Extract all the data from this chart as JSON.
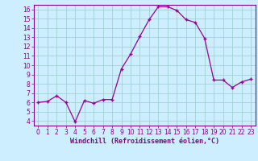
{
  "x": [
    0,
    1,
    2,
    3,
    4,
    5,
    6,
    7,
    8,
    9,
    10,
    11,
    12,
    13,
    14,
    15,
    16,
    17,
    18,
    19,
    20,
    21,
    22,
    23
  ],
  "y": [
    6.0,
    6.1,
    6.7,
    6.0,
    3.9,
    6.2,
    5.9,
    6.3,
    6.3,
    9.6,
    11.2,
    13.1,
    14.9,
    16.3,
    16.3,
    15.9,
    14.9,
    14.6,
    12.9,
    8.4,
    8.4,
    7.6,
    8.2,
    8.5
  ],
  "line_color": "#990099",
  "marker": "+",
  "marker_size": 3,
  "marker_lw": 1.0,
  "line_width": 0.9,
  "bg_color": "#cceeff",
  "grid_color": "#99cccc",
  "xlabel": "Windchill (Refroidissement éolien,°C)",
  "xlabel_fontsize": 6.0,
  "xlim": [
    -0.5,
    23.5
  ],
  "ylim": [
    3.5,
    16.5
  ],
  "yticks": [
    4,
    5,
    6,
    7,
    8,
    9,
    10,
    11,
    12,
    13,
    14,
    15,
    16
  ],
  "xticks": [
    0,
    1,
    2,
    3,
    4,
    5,
    6,
    7,
    8,
    9,
    10,
    11,
    12,
    13,
    14,
    15,
    16,
    17,
    18,
    19,
    20,
    21,
    22,
    23
  ],
  "tick_fontsize": 5.5,
  "tick_color": "#880088",
  "spine_color": "#880088"
}
